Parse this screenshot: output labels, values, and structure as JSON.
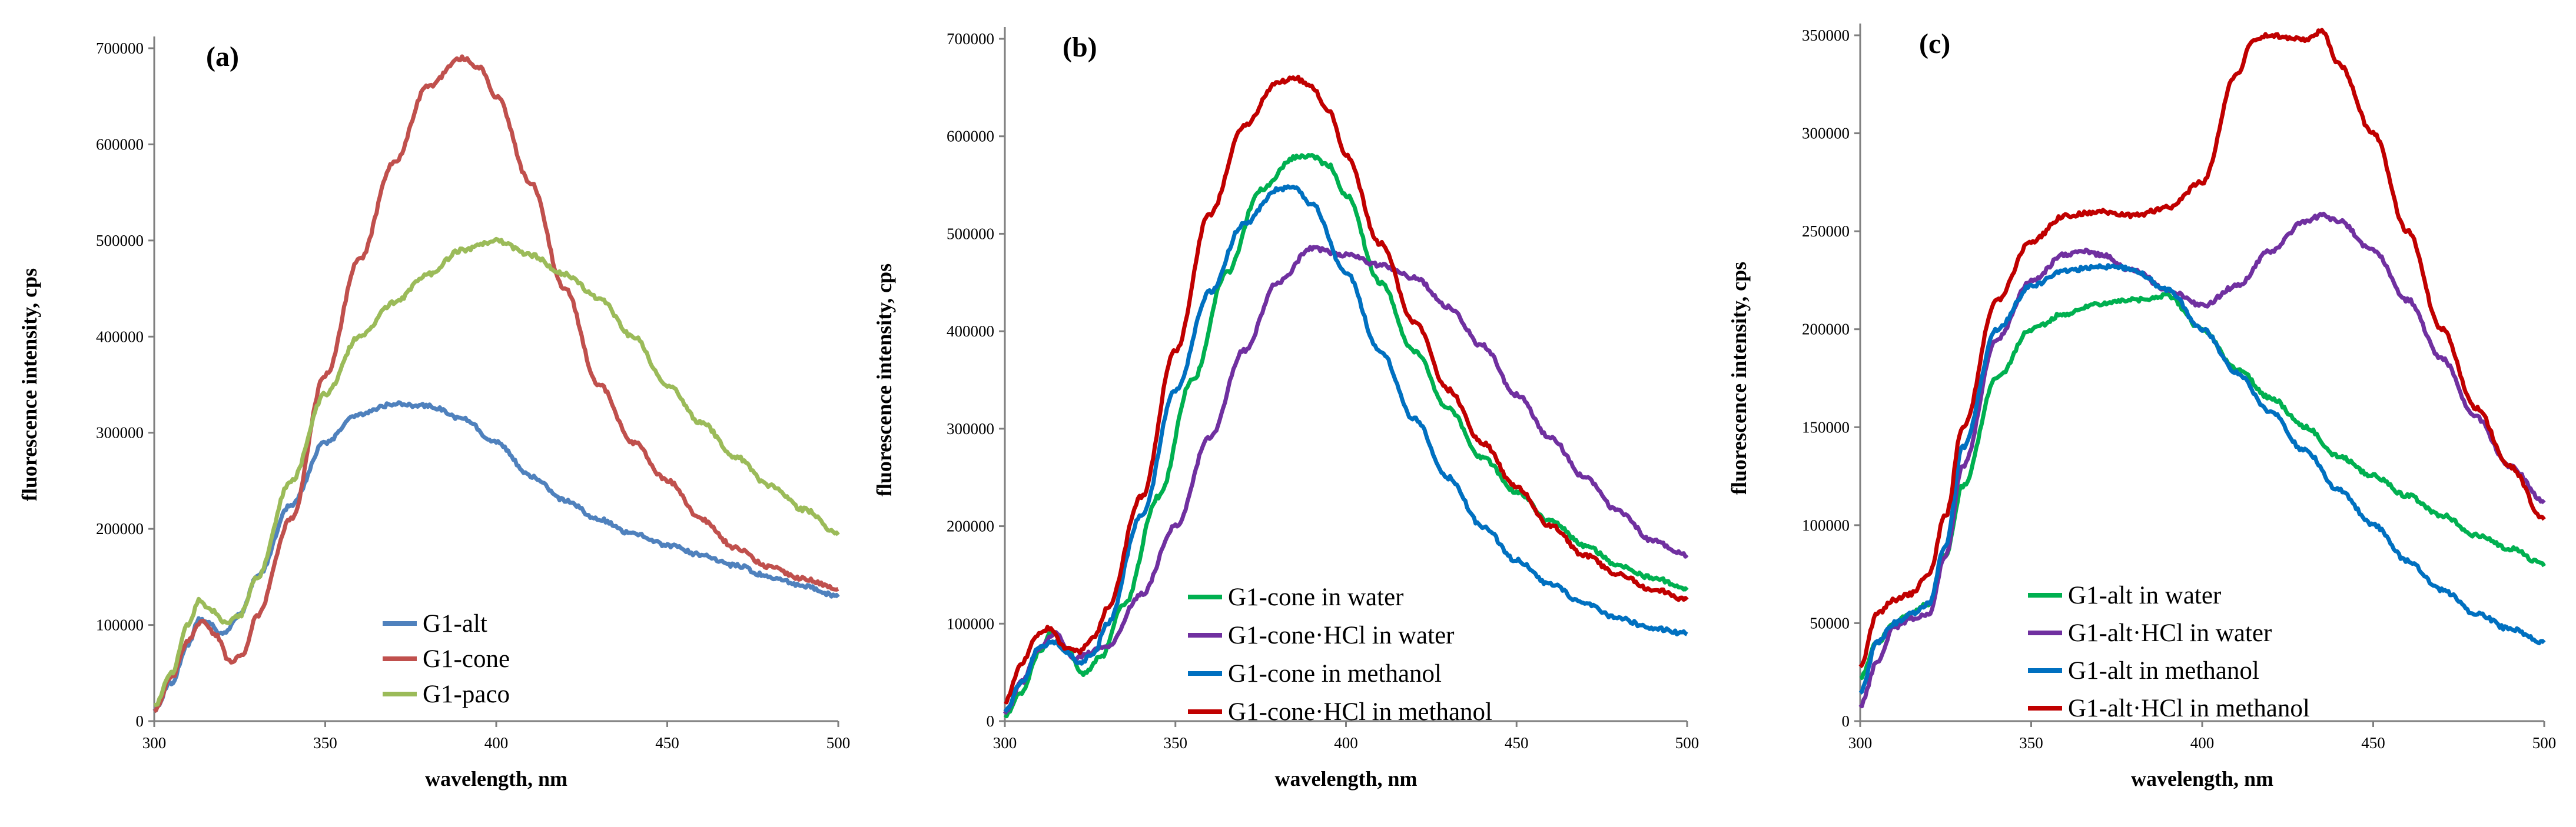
{
  "chart_data": [
    {
      "type": "line",
      "panel_label": "(a)",
      "xlabel": "wavelength, nm",
      "ylabel": "fluorescence intensity, cps",
      "xlim": [
        300,
        500
      ],
      "ylim": [
        0,
        700000
      ],
      "xticks": [
        300,
        350,
        400,
        450,
        500
      ],
      "yticks": [
        0,
        100000,
        200000,
        300000,
        400000,
        500000,
        600000,
        700000
      ],
      "grid": false,
      "legend_position": "bottom-center",
      "series": [
        {
          "name": "G1-alt",
          "color": "#4f81bd",
          "x": [
            300,
            305,
            310,
            313,
            316,
            320,
            325,
            330,
            340,
            350,
            360,
            370,
            380,
            390,
            400,
            410,
            420,
            430,
            440,
            450,
            460,
            470,
            480,
            490,
            500
          ],
          "y": [
            12000,
            40000,
            80000,
            105000,
            102000,
            90000,
            110000,
            150000,
            225000,
            290000,
            320000,
            330000,
            328000,
            315000,
            290000,
            255000,
            230000,
            210000,
            195000,
            183000,
            173000,
            162000,
            150000,
            140000,
            130000
          ]
        },
        {
          "name": "G1-cone",
          "color": "#c0504d",
          "x": [
            300,
            305,
            310,
            314,
            318,
            322,
            326,
            330,
            340,
            350,
            360,
            370,
            380,
            390,
            395,
            400,
            410,
            420,
            430,
            440,
            450,
            460,
            470,
            480,
            490,
            500
          ],
          "y": [
            10000,
            45000,
            85000,
            105000,
            90000,
            62000,
            70000,
            110000,
            210000,
            360000,
            480000,
            580000,
            660000,
            690000,
            680000,
            650000,
            560000,
            450000,
            350000,
            290000,
            250000,
            210000,
            180000,
            160000,
            148000,
            138000
          ]
        },
        {
          "name": "G1-paco",
          "color": "#9bbb59",
          "x": [
            300,
            305,
            310,
            313,
            317,
            321,
            325,
            330,
            340,
            350,
            360,
            370,
            380,
            390,
            400,
            410,
            420,
            430,
            440,
            450,
            460,
            470,
            480,
            490,
            500
          ],
          "y": [
            15000,
            50000,
            100000,
            125000,
            115000,
            102000,
            110000,
            150000,
            250000,
            340000,
            400000,
            435000,
            465000,
            490000,
            500000,
            485000,
            465000,
            440000,
            400000,
            350000,
            310000,
            275000,
            245000,
            220000,
            195000
          ]
        }
      ]
    },
    {
      "type": "line",
      "panel_label": "(b)",
      "xlabel": "wavelength, nm",
      "ylabel": "fluorescence intensity, cps",
      "xlim": [
        300,
        500
      ],
      "ylim": [
        0,
        700000
      ],
      "xticks": [
        300,
        350,
        400,
        450,
        500
      ],
      "yticks": [
        0,
        100000,
        200000,
        300000,
        400000,
        500000,
        600000,
        700000
      ],
      "grid": false,
      "legend_position": "bottom-center",
      "series": [
        {
          "name": "G1-cone in water",
          "color": "#00b050",
          "x": [
            300,
            305,
            310,
            314,
            318,
            323,
            328,
            335,
            345,
            355,
            365,
            375,
            385,
            390,
            395,
            400,
            410,
            420,
            430,
            440,
            450,
            460,
            470,
            480,
            490,
            500
          ],
          "y": [
            5000,
            30000,
            70000,
            92000,
            75000,
            48000,
            65000,
            120000,
            230000,
            350000,
            460000,
            545000,
            578000,
            580000,
            570000,
            540000,
            450000,
            380000,
            320000,
            270000,
            235000,
            205000,
            180000,
            160000,
            147000,
            135000
          ]
        },
        {
          "name": "G1-cone·HCl in water",
          "color": "#7030a0",
          "x": [
            300,
            305,
            310,
            315,
            320,
            330,
            340,
            350,
            360,
            370,
            380,
            390,
            400,
            410,
            420,
            430,
            440,
            450,
            460,
            470,
            480,
            490,
            500
          ],
          "y": [
            8000,
            40000,
            75000,
            90000,
            65000,
            75000,
            130000,
            200000,
            290000,
            380000,
            450000,
            485000,
            478000,
            468000,
            455000,
            425000,
            385000,
            335000,
            290000,
            250000,
            215000,
            185000,
            170000
          ]
        },
        {
          "name": "G1-cone in methanol",
          "color": "#0070c0",
          "x": [
            300,
            305,
            310,
            314,
            318,
            322,
            326,
            330,
            340,
            350,
            360,
            370,
            380,
            385,
            390,
            400,
            410,
            420,
            430,
            440,
            450,
            460,
            470,
            480,
            490,
            500
          ],
          "y": [
            10000,
            40000,
            75000,
            82000,
            70000,
            60000,
            70000,
            100000,
            210000,
            340000,
            440000,
            510000,
            545000,
            548000,
            530000,
            460000,
            380000,
            310000,
            250000,
            200000,
            165000,
            140000,
            120000,
            105000,
            95000,
            90000
          ]
        },
        {
          "name": "G1-cone·HCl in methanol",
          "color": "#c00000",
          "x": [
            300,
            305,
            310,
            313,
            318,
            322,
            326,
            330,
            340,
            350,
            360,
            370,
            380,
            385,
            390,
            395,
            400,
            410,
            420,
            430,
            440,
            450,
            460,
            470,
            480,
            490,
            500
          ],
          "y": [
            20000,
            60000,
            90000,
            95000,
            75000,
            72000,
            85000,
            115000,
            230000,
            380000,
            520000,
            610000,
            655000,
            660000,
            650000,
            625000,
            580000,
            490000,
            410000,
            340000,
            285000,
            240000,
            200000,
            170000,
            150000,
            135000,
            125000
          ]
        }
      ]
    },
    {
      "type": "line",
      "panel_label": "(c)",
      "xlabel": "wavelength, nm",
      "ylabel": "fluorescence intensity, cps",
      "xlim": [
        300,
        500
      ],
      "ylim": [
        0,
        350000
      ],
      "xticks": [
        300,
        350,
        400,
        450,
        500
      ],
      "yticks": [
        0,
        50000,
        100000,
        150000,
        200000,
        250000,
        300000,
        350000
      ],
      "grid": false,
      "legend_position": "bottom-center",
      "series": [
        {
          "name": "G1-alt in water",
          "color": "#00b050",
          "x": [
            300,
            305,
            310,
            315,
            320,
            325,
            330,
            340,
            350,
            360,
            370,
            380,
            390,
            400,
            410,
            420,
            430,
            440,
            450,
            460,
            470,
            480,
            490,
            500
          ],
          "y": [
            22000,
            40000,
            50000,
            55000,
            60000,
            85000,
            120000,
            175000,
            200000,
            208000,
            213000,
            215000,
            217000,
            200000,
            180000,
            165000,
            150000,
            135000,
            125000,
            115000,
            105000,
            95000,
            88000,
            80000
          ]
        },
        {
          "name": "G1-alt·HCl in water",
          "color": "#7030a0",
          "x": [
            300,
            305,
            310,
            315,
            320,
            325,
            330,
            340,
            350,
            360,
            365,
            370,
            380,
            390,
            400,
            410,
            420,
            430,
            435,
            440,
            450,
            460,
            470,
            480,
            490,
            500
          ],
          "y": [
            8000,
            30000,
            48000,
            52000,
            55000,
            85000,
            130000,
            195000,
            225000,
            238000,
            240000,
            238000,
            230000,
            220000,
            212000,
            222000,
            240000,
            255000,
            258000,
            255000,
            240000,
            215000,
            185000,
            155000,
            130000,
            112000
          ]
        },
        {
          "name": "G1-alt in methanol",
          "color": "#0070c0",
          "x": [
            300,
            305,
            310,
            315,
            320,
            325,
            330,
            340,
            350,
            360,
            370,
            375,
            380,
            390,
            400,
            410,
            420,
            430,
            440,
            450,
            460,
            470,
            480,
            490,
            500
          ],
          "y": [
            15000,
            40000,
            50000,
            55000,
            60000,
            90000,
            140000,
            200000,
            222000,
            230000,
            232000,
            232000,
            230000,
            220000,
            200000,
            178000,
            158000,
            138000,
            118000,
            100000,
            82000,
            67000,
            55000,
            47000,
            40000
          ]
        },
        {
          "name": "G1-alt·HCl in methanol",
          "color": "#c00000",
          "x": [
            300,
            305,
            310,
            315,
            320,
            325,
            330,
            340,
            350,
            360,
            370,
            380,
            390,
            400,
            410,
            415,
            420,
            430,
            435,
            440,
            450,
            460,
            470,
            480,
            490,
            500
          ],
          "y": [
            28000,
            55000,
            62000,
            65000,
            75000,
            105000,
            150000,
            215000,
            245000,
            258000,
            260000,
            258000,
            262000,
            275000,
            330000,
            348000,
            350000,
            348000,
            352000,
            335000,
            300000,
            250000,
            200000,
            160000,
            130000,
            103000
          ]
        }
      ]
    }
  ]
}
